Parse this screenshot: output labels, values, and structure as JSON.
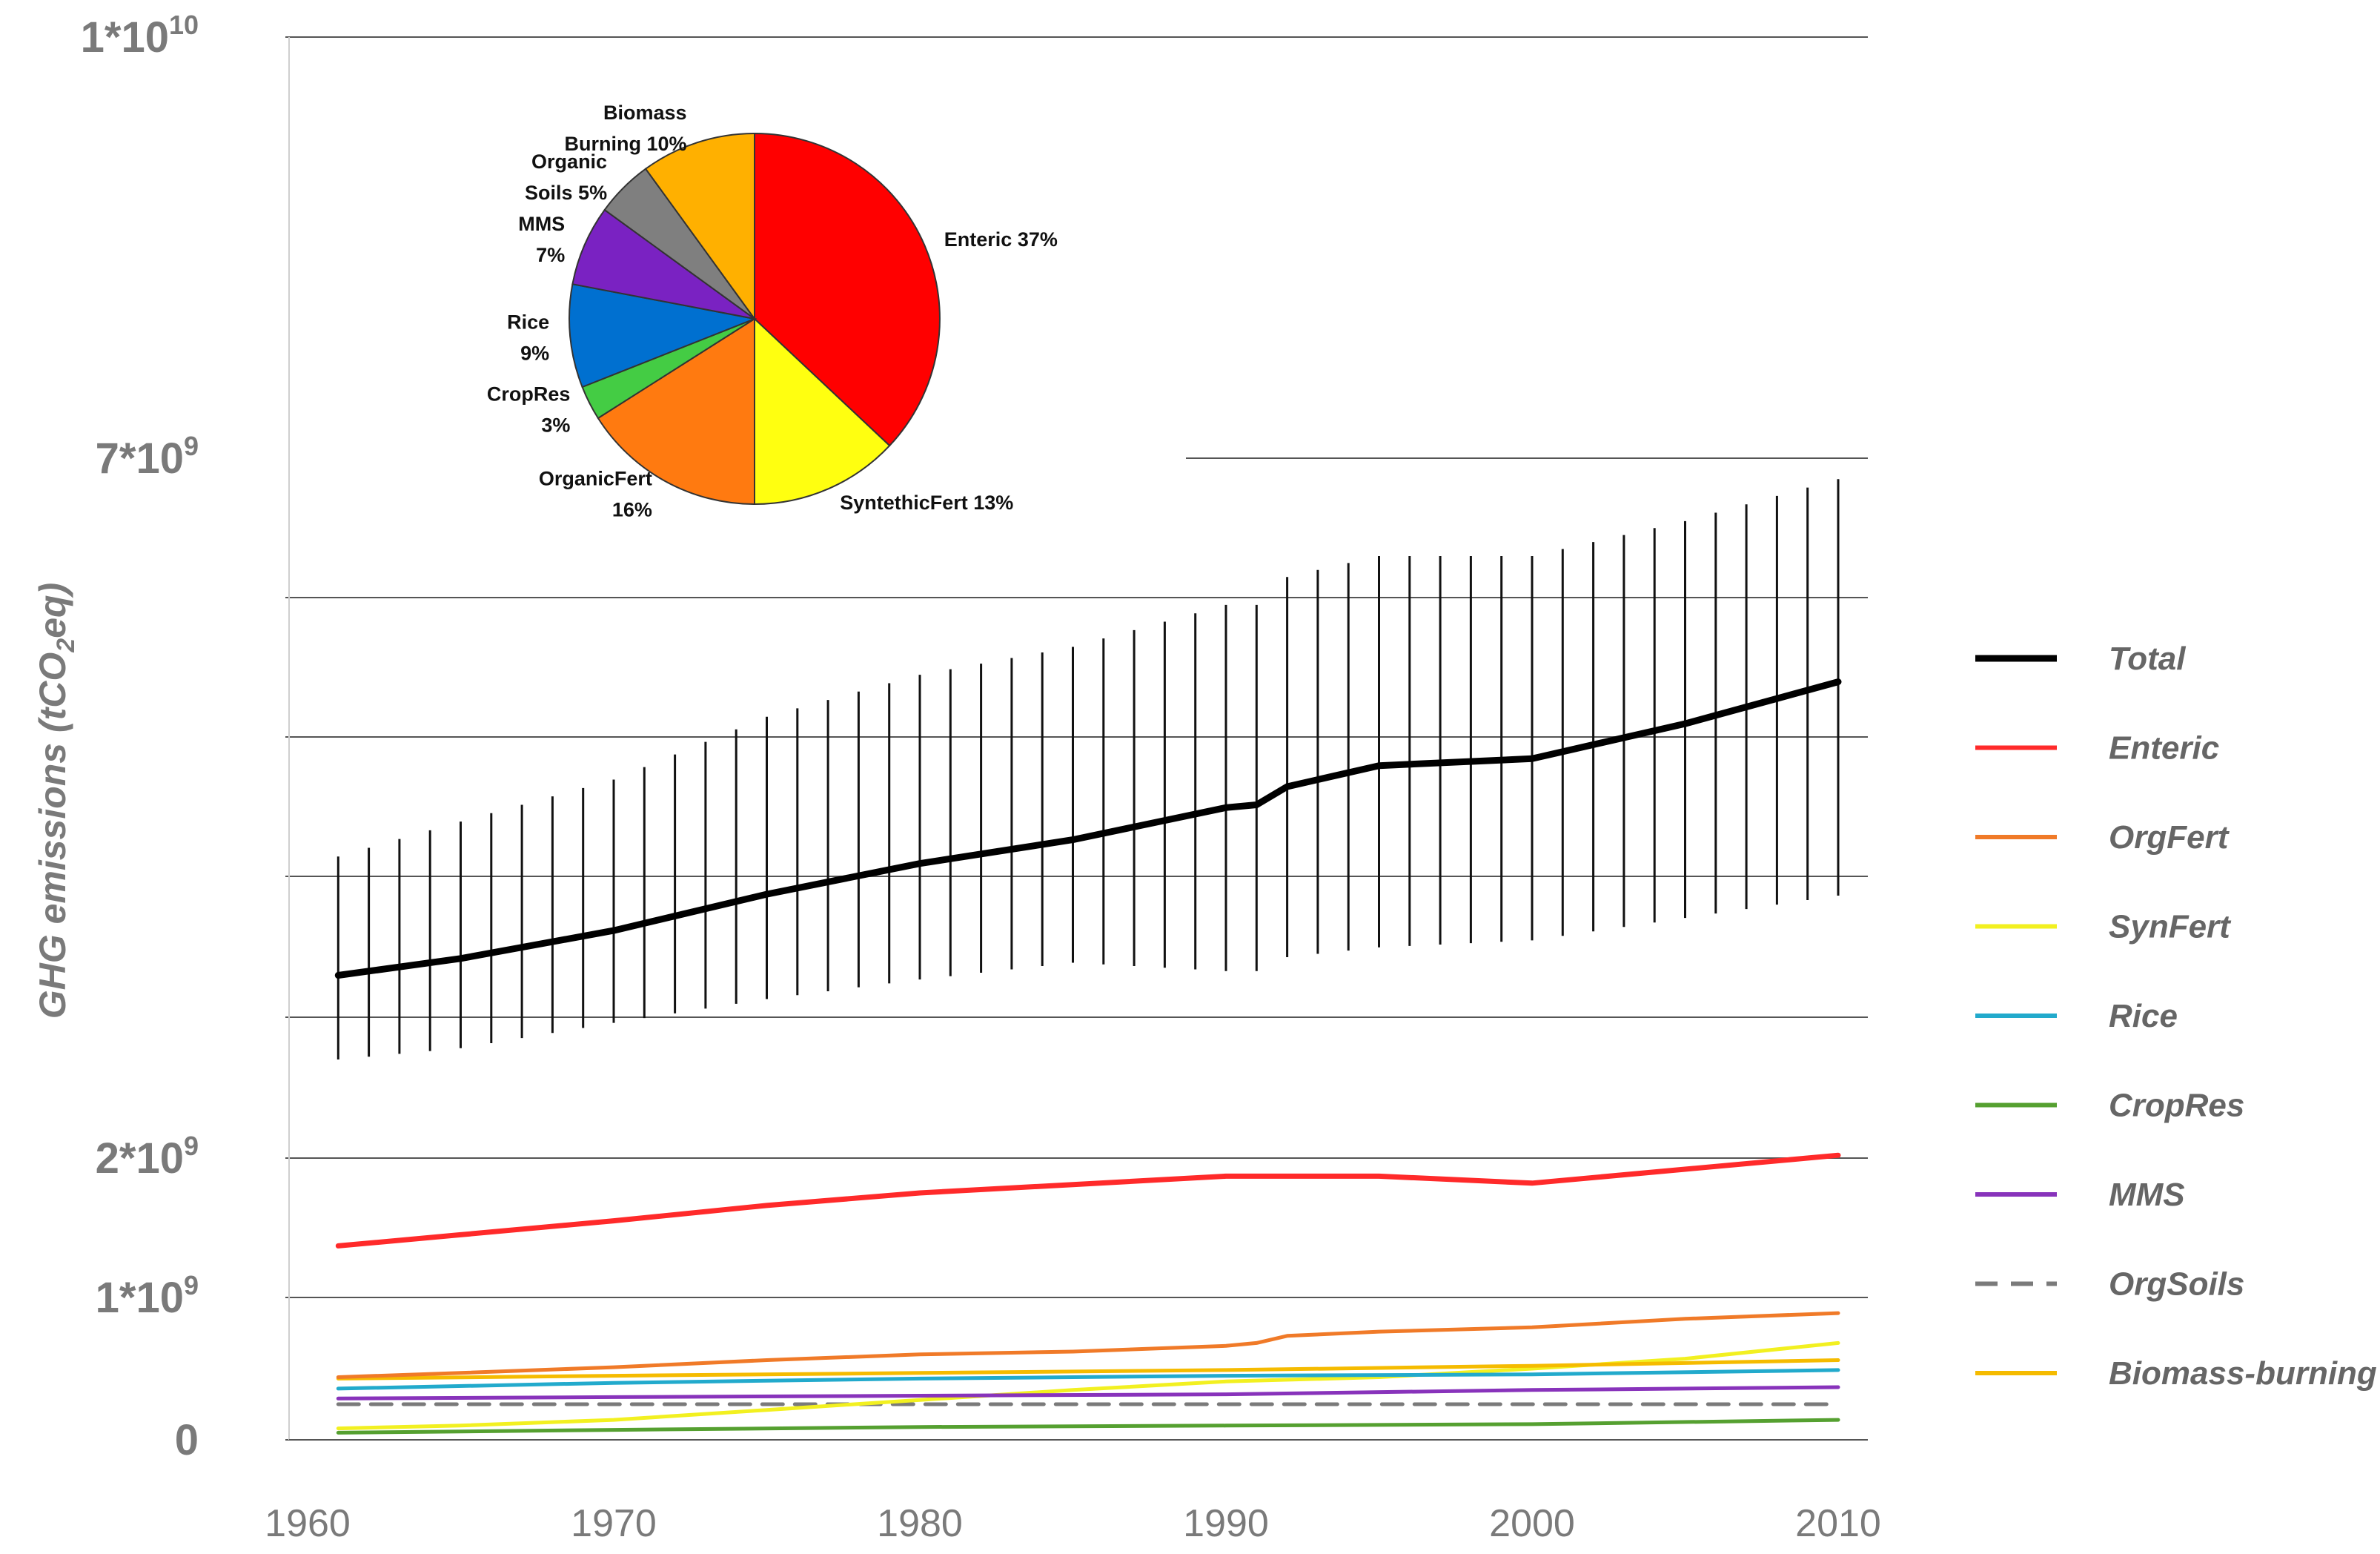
{
  "chart_data": {
    "type": "line",
    "ylabel": "GHG emissions (tCO₂eq)",
    "ylabel_parts": [
      "GHG emissions (tCO",
      "2",
      "eq)"
    ],
    "y_tick_labels": [
      {
        "label": "0",
        "value": 0
      },
      {
        "label": "1*10",
        "sup": "9",
        "value": 1000000000
      },
      {
        "label": "2*10",
        "sup": "9",
        "value": 2000000000
      },
      {
        "label": "7*10",
        "sup": "9",
        "value": 7000000000
      },
      {
        "label": "1*10",
        "sup": "10",
        "value": 10000000000
      }
    ],
    "x_ticks": [
      1960,
      1970,
      1980,
      1990,
      2000,
      2010
    ],
    "xlim": [
      1960,
      2010
    ],
    "grid": true,
    "legend_position": "right",
    "series": [
      {
        "name": "Total",
        "color": "#000000",
        "style": "solid",
        "x": [
          1961,
          1965,
          1970,
          1975,
          1980,
          1985,
          1990,
          1991,
          1992,
          1995,
          2000,
          2005,
          2010
        ],
        "y": [
          3300000000,
          3420000000,
          3620000000,
          3880000000,
          4100000000,
          4270000000,
          4500000000,
          4520000000,
          4650000000,
          4800000000,
          4850000000,
          5100000000,
          5400000000
        ],
        "error_low": [
          2700000000,
          2780000000,
          2960000000,
          3130000000,
          3270000000,
          3390000000,
          3330000000,
          3330000000,
          3430000000,
          3500000000,
          3550000000,
          3710000000,
          3870000000
        ],
        "error_high": [
          4150000000,
          4400000000,
          4700000000,
          5150000000,
          5450000000,
          5650000000,
          5950000000,
          5950000000,
          6150000000,
          6300000000,
          6300000000,
          6550000000,
          6850000000
        ]
      },
      {
        "name": "Enteric",
        "color": "#ff2a2a",
        "style": "solid",
        "x": [
          1961,
          1965,
          1970,
          1975,
          1980,
          1985,
          1990,
          1995,
          2000,
          2005,
          2010
        ],
        "y": [
          1370000000,
          1450000000,
          1550000000,
          1660000000,
          1750000000,
          1810000000,
          1870000000,
          1870000000,
          1820000000,
          1920000000,
          2020000000
        ]
      },
      {
        "name": "OrgFert",
        "color": "#f07a28",
        "style": "solid",
        "x": [
          1961,
          1965,
          1970,
          1975,
          1980,
          1985,
          1990,
          1991,
          1992,
          1995,
          2000,
          2005,
          2010
        ],
        "y": [
          440000000,
          470000000,
          510000000,
          560000000,
          600000000,
          620000000,
          660000000,
          680000000,
          730000000,
          760000000,
          790000000,
          850000000,
          890000000
        ]
      },
      {
        "name": "SynFert",
        "color": "#f2f020",
        "style": "solid",
        "x": [
          1961,
          1965,
          1970,
          1975,
          1980,
          1985,
          1990,
          1995,
          2000,
          2005,
          2010
        ],
        "y": [
          80000000,
          100000000,
          140000000,
          210000000,
          280000000,
          350000000,
          410000000,
          440000000,
          500000000,
          570000000,
          680000000
        ]
      },
      {
        "name": "Rice",
        "color": "#22aacc",
        "style": "solid",
        "x": [
          1961,
          1970,
          1980,
          1990,
          2000,
          2010
        ],
        "y": [
          360000000,
          400000000,
          430000000,
          450000000,
          460000000,
          490000000
        ]
      },
      {
        "name": "CropRes",
        "color": "#55a030",
        "style": "solid",
        "x": [
          1961,
          1970,
          1980,
          1990,
          2000,
          2010
        ],
        "y": [
          50000000,
          70000000,
          90000000,
          100000000,
          110000000,
          140000000
        ]
      },
      {
        "name": "MMS",
        "color": "#8833bb",
        "style": "solid",
        "x": [
          1961,
          1970,
          1980,
          1990,
          2000,
          2010
        ],
        "y": [
          290000000,
          300000000,
          310000000,
          320000000,
          350000000,
          370000000
        ]
      },
      {
        "name": "OrgSoils",
        "color": "#7a7a7a",
        "style": "dashed",
        "x": [
          1961,
          2010
        ],
        "y": [
          250000000,
          250000000
        ]
      },
      {
        "name": "Biomass-burning",
        "color": "#f5bb00",
        "style": "solid",
        "x": [
          1961,
          1970,
          1980,
          1990,
          2000,
          2010
        ],
        "y": [
          430000000,
          450000000,
          470000000,
          490000000,
          520000000,
          560000000
        ]
      }
    ],
    "inset_pie": {
      "type": "pie",
      "slices": [
        {
          "label": "Enteric 37%",
          "lines": [
            "Enteric 37%"
          ],
          "value": 37,
          "color": "#ff0000"
        },
        {
          "label": "SyntethicFert 13%",
          "lines": [
            "SyntethicFert 13%"
          ],
          "value": 13,
          "color": "#ffff10"
        },
        {
          "label": "OrganicFert 16%",
          "lines": [
            "OrganicFert",
            "16%"
          ],
          "value": 16,
          "color": "#ff7a10"
        },
        {
          "label": "CropRes 3%",
          "lines": [
            "CropRes",
            "3%"
          ],
          "value": 3,
          "color": "#44cc44"
        },
        {
          "label": "Rice 9%",
          "lines": [
            "Rice",
            "9%"
          ],
          "value": 9,
          "color": "#0070d0"
        },
        {
          "label": "MMS 7%",
          "lines": [
            "MMS",
            "7%"
          ],
          "value": 7,
          "color": "#7a22c2"
        },
        {
          "label": "Organic Soils 5%",
          "lines": [
            "Organic",
            "Soils 5%"
          ],
          "value": 5,
          "color": "#7f7f7f"
        },
        {
          "label": "Biomass Burning 10%",
          "lines": [
            "Biomass",
            "Burning 10%"
          ],
          "value": 10,
          "color": "#ffb000"
        }
      ]
    }
  }
}
